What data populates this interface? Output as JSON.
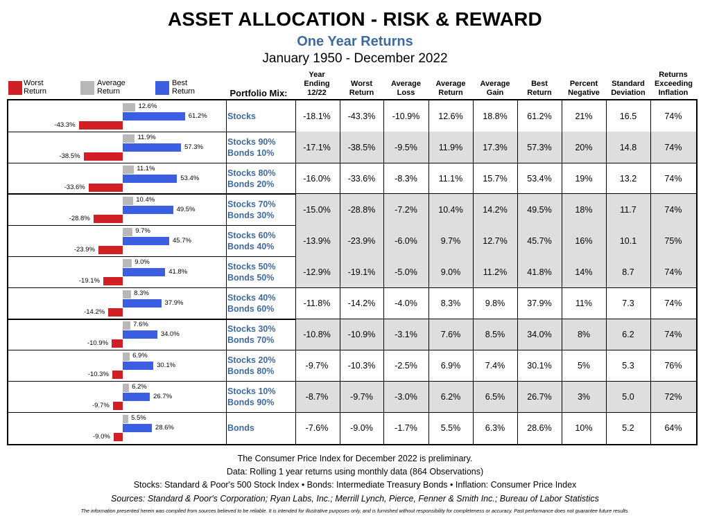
{
  "title": "ASSET ALLOCATION - RISK & REWARD",
  "subtitle": "One Year Returns",
  "period": "January 1950 - December 2022",
  "legend": {
    "worst": "Worst Return",
    "average": "Average Return",
    "best": "Best Return"
  },
  "colors": {
    "worst": "#d11f26",
    "average": "#b8b8b8",
    "best": "#3b5fe0",
    "label": "#3f6a9e",
    "shade": "#dedede"
  },
  "portfolio_mix_label": "Portfolio Mix:",
  "columns": [
    "Year Ending 12/22",
    "Worst Return",
    "Average Loss",
    "Average Return",
    "Average Gain",
    "Best Return",
    "Percent Negative",
    "Standard Deviation",
    "Returns Exceeding Inflation"
  ],
  "chart_data": {
    "type": "bar",
    "orientation": "horizontal",
    "categories": [
      "Stocks",
      "Stocks 90% Bonds 10%",
      "Stocks 80% Bonds 20%",
      "Stocks 70% Bonds 30%",
      "Stocks 60% Bonds 40%",
      "Stocks 50% Bonds 50%",
      "Stocks 40% Bonds 60%",
      "Stocks 30% Bonds 70%",
      "Stocks 20% Bonds 80%",
      "Stocks 10% Bonds 90%",
      "Bonds"
    ],
    "series": [
      {
        "name": "Worst Return",
        "values": [
          -43.3,
          -38.5,
          -33.6,
          -28.8,
          -23.9,
          -19.1,
          -14.2,
          -10.9,
          -10.3,
          -9.7,
          -9.0
        ]
      },
      {
        "name": "Average Return",
        "values": [
          12.6,
          11.9,
          11.1,
          10.4,
          9.7,
          9.0,
          8.3,
          7.6,
          6.9,
          6.2,
          5.5
        ]
      },
      {
        "name": "Best Return",
        "values": [
          61.2,
          57.3,
          53.4,
          49.5,
          45.7,
          41.8,
          37.9,
          34.0,
          30.1,
          26.7,
          28.6
        ]
      }
    ]
  },
  "rows": [
    {
      "label": [
        "Stocks"
      ],
      "worst_lbl": "-43.3%",
      "avg_lbl": "12.6%",
      "best_lbl": "61.2%",
      "shaded": false,
      "cells": [
        "-18.1%",
        "-43.3%",
        "-10.9%",
        "12.6%",
        "18.8%",
        "61.2%",
        "21%",
        "16.5",
        "74%"
      ]
    },
    {
      "label": [
        "Stocks 90%",
        "Bonds 10%"
      ],
      "worst_lbl": "-38.5%",
      "avg_lbl": "11.9%",
      "best_lbl": "57.3%",
      "shaded": true,
      "cells": [
        "-17.1%",
        "-38.5%",
        "-9.5%",
        "11.9%",
        "17.3%",
        "57.3%",
        "20%",
        "14.8",
        "74%"
      ]
    },
    {
      "label": [
        "Stocks 80%",
        "Bonds 20%"
      ],
      "worst_lbl": "-33.6%",
      "avg_lbl": "11.1%",
      "best_lbl": "53.4%",
      "shaded": false,
      "cells": [
        "-16.0%",
        "-33.6%",
        "-8.3%",
        "11.1%",
        "15.7%",
        "53.4%",
        "19%",
        "13.2",
        "74%"
      ]
    },
    {
      "label": [
        "Stocks 70%",
        "Bonds 30%"
      ],
      "worst_lbl": "-28.8%",
      "avg_lbl": "10.4%",
      "best_lbl": "49.5%",
      "shaded": true,
      "cells": [
        "-15.0%",
        "-28.8%",
        "-7.2%",
        "10.4%",
        "14.2%",
        "49.5%",
        "18%",
        "11.7",
        "74%"
      ]
    },
    {
      "label": [
        "Stocks 60%",
        "Bonds 40%"
      ],
      "worst_lbl": "-23.9%",
      "avg_lbl": "9.7%",
      "best_lbl": "45.7%",
      "shaded": true,
      "cells": [
        "-13.9%",
        "-23.9%",
        "-6.0%",
        "9.7%",
        "12.7%",
        "45.7%",
        "16%",
        "10.1",
        "75%"
      ]
    },
    {
      "label": [
        "Stocks 50%",
        "Bonds 50%"
      ],
      "worst_lbl": "-19.1%",
      "avg_lbl": "9.0%",
      "best_lbl": "41.8%",
      "shaded": true,
      "cells": [
        "-12.9%",
        "-19.1%",
        "-5.0%",
        "9.0%",
        "11.2%",
        "41.8%",
        "14%",
        "8.7",
        "74%"
      ]
    },
    {
      "label": [
        "Stocks 40%",
        "Bonds 60%"
      ],
      "worst_lbl": "-14.2%",
      "avg_lbl": "8.3%",
      "best_lbl": "37.9%",
      "shaded": false,
      "cells": [
        "-11.8%",
        "-14.2%",
        "-4.0%",
        "8.3%",
        "9.8%",
        "37.9%",
        "11%",
        "7.3",
        "74%"
      ]
    },
    {
      "label": [
        "Stocks 30%",
        "Bonds 70%"
      ],
      "worst_lbl": "-10.9%",
      "avg_lbl": "7.6%",
      "best_lbl": "34.0%",
      "shaded": true,
      "cells": [
        "-10.8%",
        "-10.9%",
        "-3.1%",
        "7.6%",
        "8.5%",
        "34.0%",
        "8%",
        "6.2",
        "74%"
      ]
    },
    {
      "label": [
        "Stocks 20%",
        "Bonds 80%"
      ],
      "worst_lbl": "-10.3%",
      "avg_lbl": "6.9%",
      "best_lbl": "30.1%",
      "shaded": false,
      "cells": [
        "-9.7%",
        "-10.3%",
        "-2.5%",
        "6.9%",
        "7.4%",
        "30.1%",
        "5%",
        "5.3",
        "76%"
      ]
    },
    {
      "label": [
        "Stocks 10%",
        "Bonds 90%"
      ],
      "worst_lbl": "-9.7%",
      "avg_lbl": "6.2%",
      "best_lbl": "26.7%",
      "shaded": true,
      "cells": [
        "-8.7%",
        "-9.7%",
        "-3.0%",
        "6.2%",
        "6.5%",
        "26.7%",
        "3%",
        "5.0",
        "72%"
      ]
    },
    {
      "label": [
        "Bonds"
      ],
      "worst_lbl": "-9.0%",
      "avg_lbl": "5.5%",
      "best_lbl": "28.6%",
      "shaded": false,
      "cells": [
        "-7.6%",
        "-9.0%",
        "-1.7%",
        "5.5%",
        "6.3%",
        "28.6%",
        "10%",
        "5.2",
        "64%"
      ]
    }
  ],
  "footer": {
    "line1": "The Consumer Price Index for December 2022 is preliminary.",
    "line2": "Data: Rolling 1 year returns using monthly data (864 Observations)",
    "line3": "Stocks: Standard & Poor's 500 Stock Index • Bonds: Intermediate Treasury Bonds • Inflation: Consumer Price Index",
    "line4": "Sources: Standard & Poor's Corporation; Ryan Labs, Inc.; Merrill Lynch, Pierce, Fenner & Smith Inc.; Bureau of Labor Statistics",
    "disclaimer": "The information presented herein was compiled from sources believed to be reliable. It is intended for illustrative purposes only, and is furnished without responsibility for completeness or accuracy. Past performance does not guarantee future results."
  }
}
